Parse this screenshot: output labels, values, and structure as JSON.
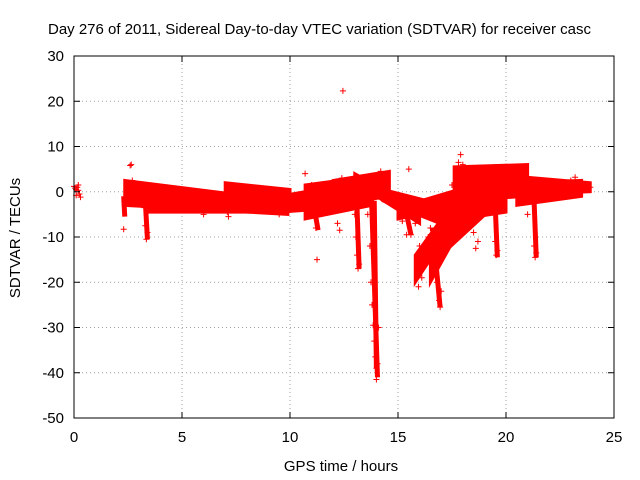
{
  "chart_data": {
    "type": "scatter",
    "title": "Day 276 of 2011, Sidereal Day-to-day VTEC variation (SDTVAR) for receiver casc",
    "xlabel": "GPS time / hours",
    "ylabel": "SDTVAR / TECUs",
    "xlim": [
      0,
      25
    ],
    "ylim": [
      -50,
      30
    ],
    "xticks": [
      "0",
      "5",
      "10",
      "15",
      "20",
      "25"
    ],
    "yticks": [
      "30",
      "20",
      "10",
      "0",
      "-10",
      "-20",
      "-30",
      "-40",
      "-50"
    ],
    "grid": true,
    "marker": "+",
    "series": [
      {
        "name": "SDTVAR",
        "color": "#ff0000",
        "points": [
          [
            0.0,
            1.2
          ],
          [
            0.05,
            0.8
          ],
          [
            0.1,
            0.5
          ],
          [
            0.15,
            1.0
          ],
          [
            0.2,
            0.3
          ],
          [
            0.25,
            -0.5
          ],
          [
            0.3,
            -1.2
          ],
          [
            0.1,
            -0.8
          ],
          [
            0.2,
            1.5
          ],
          [
            2.3,
            -8.3
          ],
          [
            2.35,
            -3.0
          ],
          [
            2.4,
            -1.5
          ],
          [
            2.45,
            -0.5
          ],
          [
            2.5,
            0.5
          ],
          [
            2.55,
            1.0
          ],
          [
            2.6,
            5.8
          ],
          [
            2.65,
            6.0
          ],
          [
            2.7,
            2.5
          ],
          [
            2.8,
            1.8
          ],
          [
            3.0,
            1.5
          ],
          [
            3.2,
            -1.0
          ],
          [
            3.25,
            -3.5
          ],
          [
            3.3,
            -7.5
          ],
          [
            3.35,
            -10.5
          ],
          [
            3.4,
            -9.0
          ],
          [
            3.5,
            -0.5
          ],
          [
            4.0,
            0.5
          ],
          [
            4.5,
            -1.0
          ],
          [
            5.0,
            -1.5
          ],
          [
            5.5,
            -1.0
          ],
          [
            6.0,
            -5.0
          ],
          [
            6.5,
            -2.0
          ],
          [
            7.0,
            -1.5
          ],
          [
            7.1,
            -4.5
          ],
          [
            7.15,
            -5.5
          ],
          [
            7.2,
            -4.0
          ],
          [
            7.5,
            -1.0
          ],
          [
            8.0,
            0.5
          ],
          [
            8.5,
            -1.5
          ],
          [
            9.0,
            -3.0
          ],
          [
            9.5,
            -5.0
          ],
          [
            10.0,
            -4.0
          ],
          [
            10.5,
            -1.5
          ],
          [
            10.7,
            4.0
          ],
          [
            10.8,
            0.0
          ],
          [
            11.0,
            1.5
          ],
          [
            11.2,
            -8.0
          ],
          [
            11.25,
            -15.0
          ],
          [
            11.5,
            -1.0
          ],
          [
            12.0,
            -3.5
          ],
          [
            12.2,
            -7.0
          ],
          [
            12.3,
            -8.5
          ],
          [
            12.4,
            3.0
          ],
          [
            12.45,
            22.3
          ],
          [
            12.5,
            1.0
          ],
          [
            12.8,
            -3.0
          ],
          [
            13.0,
            -5.0
          ],
          [
            13.05,
            -10.0
          ],
          [
            13.1,
            -14.0
          ],
          [
            13.15,
            -17.0
          ],
          [
            13.2,
            -16.0
          ],
          [
            13.5,
            2.0
          ],
          [
            13.6,
            -5.0
          ],
          [
            13.7,
            -12.0
          ],
          [
            13.75,
            -20.0
          ],
          [
            13.8,
            -25.0
          ],
          [
            13.85,
            -29.5
          ],
          [
            13.9,
            -33.0
          ],
          [
            13.95,
            -36.5
          ],
          [
            14.0,
            -39.0
          ],
          [
            14.0,
            -41.5
          ],
          [
            14.05,
            -38.0
          ],
          [
            14.1,
            -30.0
          ],
          [
            14.2,
            4.5
          ],
          [
            14.5,
            2.0
          ],
          [
            15.0,
            -3.0
          ],
          [
            15.2,
            -6.5
          ],
          [
            15.4,
            -9.5
          ],
          [
            15.5,
            5.0
          ],
          [
            15.6,
            -9.5
          ],
          [
            15.8,
            -7.0
          ],
          [
            15.9,
            -18.0
          ],
          [
            15.95,
            -21.0
          ],
          [
            16.0,
            -12.0
          ],
          [
            16.1,
            -19.0
          ],
          [
            16.3,
            -14.0
          ],
          [
            16.4,
            -10.0
          ],
          [
            16.5,
            -8.0
          ],
          [
            16.7,
            -14.5
          ],
          [
            16.8,
            -20.0
          ],
          [
            16.9,
            -24.0
          ],
          [
            16.95,
            -25.5
          ],
          [
            17.0,
            -22.0
          ],
          [
            17.2,
            -10.0
          ],
          [
            17.3,
            -2.0
          ],
          [
            17.5,
            1.5
          ],
          [
            17.8,
            6.5
          ],
          [
            17.9,
            8.2
          ],
          [
            18.0,
            6.0
          ],
          [
            18.2,
            -1.0
          ],
          [
            18.4,
            -5.0
          ],
          [
            18.5,
            -9.0
          ],
          [
            18.6,
            -12.5
          ],
          [
            18.7,
            -11.0
          ],
          [
            19.0,
            1.0
          ],
          [
            19.3,
            -3.0
          ],
          [
            19.5,
            -11.0
          ],
          [
            19.55,
            -14.0
          ],
          [
            19.6,
            -13.0
          ],
          [
            19.7,
            -3.0
          ],
          [
            20.0,
            5.5
          ],
          [
            20.3,
            3.0
          ],
          [
            20.5,
            2.0
          ],
          [
            21.0,
            -5.0
          ],
          [
            21.3,
            -12.0
          ],
          [
            21.35,
            -14.5
          ],
          [
            21.4,
            -13.5
          ],
          [
            21.5,
            2.5
          ],
          [
            22.0,
            1.5
          ],
          [
            22.5,
            1.0
          ],
          [
            23.0,
            2.5
          ],
          [
            23.2,
            3.2
          ],
          [
            23.5,
            1.5
          ],
          [
            23.8,
            0.5
          ],
          [
            23.9,
            1.0
          ]
        ]
      }
    ],
    "bands": [
      {
        "x0": 2.35,
        "x1": 9.9,
        "lo0": -3.0,
        "hi0": 2.5,
        "lo1": -5.0,
        "hi1": -2.0
      },
      {
        "x0": 2.6,
        "x1": 6.5,
        "lo0": -2.5,
        "hi0": 1.5,
        "lo1": -4.0,
        "hi1": -0.5
      },
      {
        "x0": 3.3,
        "x1": 9.7,
        "lo0": -4.5,
        "hi0": -1.5,
        "lo1": -4.5,
        "hi1": -2.5
      },
      {
        "x0": 7.0,
        "x1": 10.0,
        "lo0": -1.0,
        "hi0": 2.0,
        "lo1": -4.0,
        "hi1": 0.5
      },
      {
        "x0": 9.5,
        "x1": 12.5,
        "lo0": -4.5,
        "hi0": -1.0,
        "lo1": -3.5,
        "hi1": 1.5
      },
      {
        "x0": 10.7,
        "x1": 13.8,
        "lo0": -6.0,
        "hi0": 1.5,
        "lo1": -3.0,
        "hi1": 3.5
      },
      {
        "x0": 12.0,
        "x1": 14.6,
        "lo0": -3.0,
        "hi0": 2.5,
        "lo1": -1.0,
        "hi1": 4.5
      },
      {
        "x0": 13.0,
        "x1": 16.0,
        "lo0": 2.0,
        "hi0": 4.0,
        "lo1": -7.0,
        "hi1": -4.0
      },
      {
        "x0": 14.3,
        "x1": 17.2,
        "lo0": -2.0,
        "hi0": 0.5,
        "lo1": -7.5,
        "hi1": -3.0
      },
      {
        "x0": 15.0,
        "x1": 18.5,
        "lo0": -6.0,
        "hi0": -3.5,
        "lo1": -2.5,
        "hi1": 1.5
      },
      {
        "x0": 15.8,
        "x1": 18.0,
        "lo0": -20.0,
        "hi0": -14.0,
        "lo1": -4.0,
        "hi1": 0.5
      },
      {
        "x0": 16.5,
        "x1": 18.3,
        "lo0": -20.0,
        "hi0": -12.0,
        "lo1": -4.5,
        "hi1": 0.0
      },
      {
        "x0": 17.0,
        "x1": 19.5,
        "lo0": -14.0,
        "hi0": -6.0,
        "lo1": -3.0,
        "hi1": 2.5
      },
      {
        "x0": 17.6,
        "x1": 21.0,
        "lo0": -2.0,
        "hi0": 5.5,
        "lo1": -1.0,
        "hi1": 6.0
      },
      {
        "x0": 18.0,
        "x1": 20.0,
        "lo0": -6.0,
        "hi0": 1.5,
        "lo1": -4.5,
        "hi1": 4.5
      },
      {
        "x0": 19.0,
        "x1": 23.9,
        "lo0": -1.0,
        "hi0": 4.0,
        "lo1": 0.0,
        "hi1": 2.0
      },
      {
        "x0": 20.5,
        "x1": 23.5,
        "lo0": -3.0,
        "hi0": 2.0,
        "lo1": -1.0,
        "hi1": 2.5
      }
    ],
    "spikes": [
      {
        "x0": 13.1,
        "x1": 13.2,
        "y0": -3.0,
        "y1": -17.0
      },
      {
        "x0": 13.75,
        "x1": 14.05,
        "y0": 2.0,
        "y1": -41.0
      },
      {
        "x0": 13.9,
        "x1": 14.0,
        "y0": -2.0,
        "y1": -39.0
      },
      {
        "x0": 16.6,
        "x1": 16.95,
        "y0": -8.0,
        "y1": -25.5
      },
      {
        "x0": 19.5,
        "x1": 19.6,
        "y0": -3.0,
        "y1": -14.5
      },
      {
        "x0": 21.3,
        "x1": 21.4,
        "y0": -2.0,
        "y1": -14.5
      },
      {
        "x0": 3.3,
        "x1": 3.4,
        "y0": -2.0,
        "y1": -10.5
      },
      {
        "x0": 2.3,
        "x1": 2.35,
        "y0": -1.0,
        "y1": -5.5
      },
      {
        "x0": 11.1,
        "x1": 11.3,
        "y0": -3.0,
        "y1": -8.5
      },
      {
        "x0": 15.4,
        "x1": 15.6,
        "y0": -5.0,
        "y1": -9.5
      }
    ]
  }
}
